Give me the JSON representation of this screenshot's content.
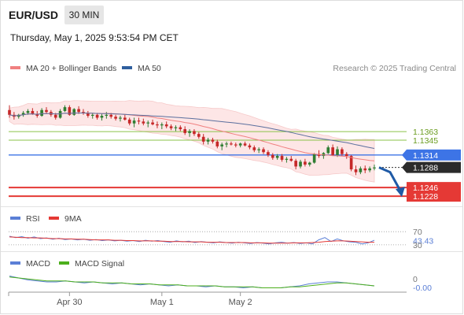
{
  "header": {
    "symbol": "EUR/USD",
    "timeframe": "30 MIN",
    "timestamp": "Thursday, May 1, 2025 9:53:54 PM CET"
  },
  "legend": {
    "items": [
      {
        "label": "MA 20 + Bollinger Bands",
        "color": "#f08080"
      },
      {
        "label": "MA 50",
        "color": "#2f5f9e"
      }
    ],
    "credit": "Research © 2025 Trading Central"
  },
  "colors": {
    "up": "#2f7d32",
    "down": "#c62828",
    "ma20": "#f08080",
    "ma50": "#5b6f9e",
    "bollinger_fill": "#fde6e6",
    "resistance": "#8bc34a",
    "pivot": "#3d74e6",
    "support": "#e53935",
    "forecast": "#1f5aa6",
    "last_price_bg": "#2b2b2b"
  },
  "chart_data": [
    {
      "type": "candlestick",
      "name": "price",
      "x_labels": [
        "Apr 30",
        "May 1",
        "May 2"
      ],
      "x_label_positions": [
        13,
        33,
        50
      ],
      "ylim": [
        1.121,
        1.148
      ],
      "candles": [
        [
          1.1408,
          1.1418,
          1.1392,
          1.1398
        ],
        [
          1.1398,
          1.1404,
          1.1388,
          1.1394
        ],
        [
          1.1394,
          1.14,
          1.139,
          1.1398
        ],
        [
          1.1398,
          1.1406,
          1.1394,
          1.1402
        ],
        [
          1.1402,
          1.141,
          1.1398,
          1.1406
        ],
        [
          1.1406,
          1.1412,
          1.1398,
          1.14
        ],
        [
          1.14,
          1.1406,
          1.1392,
          1.1396
        ],
        [
          1.1396,
          1.1412,
          1.1394,
          1.1408
        ],
        [
          1.1408,
          1.1414,
          1.14,
          1.1404
        ],
        [
          1.1404,
          1.1408,
          1.1394,
          1.1398
        ],
        [
          1.1398,
          1.1402,
          1.1388,
          1.1392
        ],
        [
          1.1392,
          1.141,
          1.139,
          1.1406
        ],
        [
          1.1406,
          1.1418,
          1.1404,
          1.1414
        ],
        [
          1.1414,
          1.1418,
          1.1396,
          1.1398
        ],
        [
          1.1398,
          1.1412,
          1.1396,
          1.141
        ],
        [
          1.141,
          1.1416,
          1.14,
          1.1404
        ],
        [
          1.1404,
          1.141,
          1.1398,
          1.1402
        ],
        [
          1.1402,
          1.1406,
          1.1392,
          1.1396
        ],
        [
          1.1396,
          1.1402,
          1.139,
          1.1398
        ],
        [
          1.1398,
          1.1402,
          1.1388,
          1.1392
        ],
        [
          1.1392,
          1.14,
          1.1386,
          1.1396
        ],
        [
          1.1396,
          1.1404,
          1.139,
          1.1398
        ],
        [
          1.1398,
          1.1402,
          1.139,
          1.1394
        ],
        [
          1.1394,
          1.1398,
          1.1386,
          1.139
        ],
        [
          1.139,
          1.1396,
          1.1384,
          1.1392
        ],
        [
          1.1392,
          1.1398,
          1.1386,
          1.1388
        ],
        [
          1.1388,
          1.1392,
          1.1376,
          1.138
        ],
        [
          1.138,
          1.1392,
          1.1372,
          1.1386
        ],
        [
          1.1386,
          1.1392,
          1.1378,
          1.1384
        ],
        [
          1.1384,
          1.139,
          1.1376,
          1.138
        ],
        [
          1.138,
          1.1386,
          1.1372,
          1.1382
        ],
        [
          1.1382,
          1.1388,
          1.1376,
          1.1378
        ],
        [
          1.1378,
          1.1384,
          1.137,
          1.1376
        ],
        [
          1.1376,
          1.1382,
          1.1368,
          1.1378
        ],
        [
          1.1378,
          1.1384,
          1.137,
          1.1374
        ],
        [
          1.1374,
          1.1378,
          1.1366,
          1.137
        ],
        [
          1.137,
          1.1376,
          1.1364,
          1.1372
        ],
        [
          1.1372,
          1.1376,
          1.1364,
          1.1368
        ],
        [
          1.1368,
          1.1374,
          1.1356,
          1.136
        ],
        [
          1.136,
          1.1368,
          1.1352,
          1.1364
        ],
        [
          1.1364,
          1.1368,
          1.1354,
          1.1358
        ],
        [
          1.1358,
          1.1362,
          1.1348,
          1.1352
        ],
        [
          1.1352,
          1.1358,
          1.1336,
          1.1342
        ],
        [
          1.1342,
          1.135,
          1.1336,
          1.1346
        ],
        [
          1.1346,
          1.135,
          1.1338,
          1.1342
        ],
        [
          1.1342,
          1.1346,
          1.1328,
          1.1332
        ],
        [
          1.1332,
          1.134,
          1.1324,
          1.1336
        ],
        [
          1.1336,
          1.1342,
          1.133,
          1.1338
        ],
        [
          1.1338,
          1.1342,
          1.1334,
          1.1336
        ],
        [
          1.1336,
          1.134,
          1.133,
          1.1334
        ],
        [
          1.1334,
          1.134,
          1.133,
          1.1338
        ],
        [
          1.1338,
          1.1342,
          1.1332,
          1.1334
        ],
        [
          1.1334,
          1.1338,
          1.1326,
          1.133
        ],
        [
          1.133,
          1.1334,
          1.132,
          1.1324
        ],
        [
          1.1324,
          1.133,
          1.1318,
          1.1326
        ],
        [
          1.1326,
          1.133,
          1.1316,
          1.132
        ],
        [
          1.132,
          1.1324,
          1.131,
          1.1314
        ],
        [
          1.1314,
          1.1318,
          1.1304,
          1.1308
        ],
        [
          1.1308,
          1.1316,
          1.1304,
          1.1312
        ],
        [
          1.1312,
          1.1316,
          1.13,
          1.1304
        ],
        [
          1.1304,
          1.131,
          1.1298,
          1.1306
        ],
        [
          1.1306,
          1.1312,
          1.13,
          1.1302
        ],
        [
          1.1302,
          1.1306,
          1.1284,
          1.129
        ],
        [
          1.129,
          1.1304,
          1.1286,
          1.13
        ],
        [
          1.13,
          1.1306,
          1.129,
          1.1294
        ],
        [
          1.1294,
          1.13,
          1.129,
          1.1298
        ],
        [
          1.1298,
          1.1318,
          1.1296,
          1.1316
        ],
        [
          1.1316,
          1.1324,
          1.1308,
          1.1312
        ],
        [
          1.1312,
          1.132,
          1.1306,
          1.1318
        ],
        [
          1.1318,
          1.1334,
          1.1316,
          1.133
        ],
        [
          1.133,
          1.1336,
          1.1312,
          1.1314
        ],
        [
          1.1314,
          1.1332,
          1.131,
          1.1326
        ],
        [
          1.1326,
          1.133,
          1.1312,
          1.1316
        ],
        [
          1.1316,
          1.132,
          1.1306,
          1.1312
        ],
        [
          1.1312,
          1.1314,
          1.128,
          1.1284
        ],
        [
          1.1284,
          1.1292,
          1.1272,
          1.1278
        ],
        [
          1.1278,
          1.129,
          1.1274,
          1.1286
        ],
        [
          1.1286,
          1.1292,
          1.1276,
          1.1282
        ],
        [
          1.1282,
          1.129,
          1.1278,
          1.1286
        ],
        [
          1.1286,
          1.1294,
          1.1282,
          1.1288
        ]
      ],
      "levels": [
        {
          "label": "1.1363",
          "value": 1.1363,
          "kind": "resistance"
        },
        {
          "label": "1.1345",
          "value": 1.1345,
          "kind": "resistance"
        },
        {
          "label": "1.1314",
          "value": 1.1314,
          "kind": "pivot"
        },
        {
          "label": "1.1288",
          "value": 1.1288,
          "kind": "last"
        },
        {
          "label": "1.1246",
          "value": 1.1246,
          "kind": "support"
        },
        {
          "label": "1.1228",
          "value": 1.1228,
          "kind": "support"
        }
      ]
    },
    {
      "type": "line",
      "name": "RSI panel",
      "legend": [
        {
          "label": "RSI",
          "color": "#5b7fd6"
        },
        {
          "label": "9MA",
          "color": "#e53935"
        }
      ],
      "ylim": [
        25,
        80
      ],
      "reference_lines": [
        70,
        30
      ],
      "tick_labels": [
        "70",
        "43.43",
        "30"
      ],
      "series": [
        {
          "name": "RSI",
          "values": [
            56,
            52,
            55,
            50,
            54,
            49,
            51,
            47,
            50,
            46,
            48,
            45,
            47,
            44,
            46,
            43,
            45,
            42,
            44,
            41,
            43,
            40,
            44,
            41,
            43,
            40,
            38,
            42,
            39,
            41,
            37,
            40,
            38,
            36,
            39,
            37,
            35,
            38,
            36,
            34,
            37,
            35,
            33,
            36,
            38,
            35,
            37,
            34,
            36,
            33,
            45,
            52,
            40,
            48,
            42,
            39,
            38,
            33,
            36,
            44
          ]
        },
        {
          "name": "9MA",
          "values": [
            54,
            53,
            52,
            52,
            51,
            51,
            50,
            49,
            49,
            48,
            48,
            47,
            47,
            46,
            45,
            45,
            45,
            44,
            44,
            43,
            43,
            42,
            42,
            42,
            41,
            41,
            40,
            40,
            40,
            39,
            39,
            39,
            38,
            38,
            38,
            37,
            37,
            37,
            37,
            36,
            36,
            36,
            35,
            35,
            35,
            35,
            36,
            36,
            36,
            37,
            38,
            40,
            41,
            42,
            42,
            41,
            40,
            39,
            38,
            38
          ]
        }
      ]
    },
    {
      "type": "line",
      "name": "MACD panel",
      "legend": [
        {
          "label": "MACD",
          "color": "#5b7fd6"
        },
        {
          "label": "MACD Signal",
          "color": "#4caf1c"
        }
      ],
      "ylim": [
        -0.0012,
        0.0004
      ],
      "tick_labels": [
        "0",
        "-0.00"
      ],
      "series": [
        {
          "name": "MACD",
          "values": [
            0.0002,
            0.0,
            -0.0002,
            -0.0003,
            -0.0004,
            -0.0004,
            -0.0003,
            -0.0004,
            -0.0005,
            -0.0004,
            -0.0005,
            -0.0006,
            -0.0005,
            -0.0006,
            -0.0007,
            -0.0006,
            -0.0007,
            -0.0008,
            -0.0007,
            -0.0008,
            -0.0008,
            -0.0009,
            -0.0008,
            -0.0009,
            -0.0009,
            -0.001,
            -0.0009,
            -0.001,
            -0.001,
            -0.001,
            -0.0009,
            -0.0008,
            -0.0006,
            -0.0005,
            -0.0004,
            -0.0004,
            -0.0005,
            -0.0006,
            -0.0007,
            -0.0008
          ]
        },
        {
          "name": "MACD Signal",
          "values": [
            0.0001,
            0.0,
            -0.0001,
            -0.0002,
            -0.0003,
            -0.0003,
            -0.0003,
            -0.0004,
            -0.0004,
            -0.0004,
            -0.0005,
            -0.0005,
            -0.0005,
            -0.0006,
            -0.0006,
            -0.0006,
            -0.0007,
            -0.0007,
            -0.0007,
            -0.0008,
            -0.0008,
            -0.0008,
            -0.0008,
            -0.0009,
            -0.0009,
            -0.0009,
            -0.0009,
            -0.001,
            -0.001,
            -0.001,
            -0.0009,
            -0.0009,
            -0.0008,
            -0.0007,
            -0.0006,
            -0.0005,
            -0.0005,
            -0.0006,
            -0.0007,
            -0.0008
          ]
        }
      ]
    }
  ]
}
